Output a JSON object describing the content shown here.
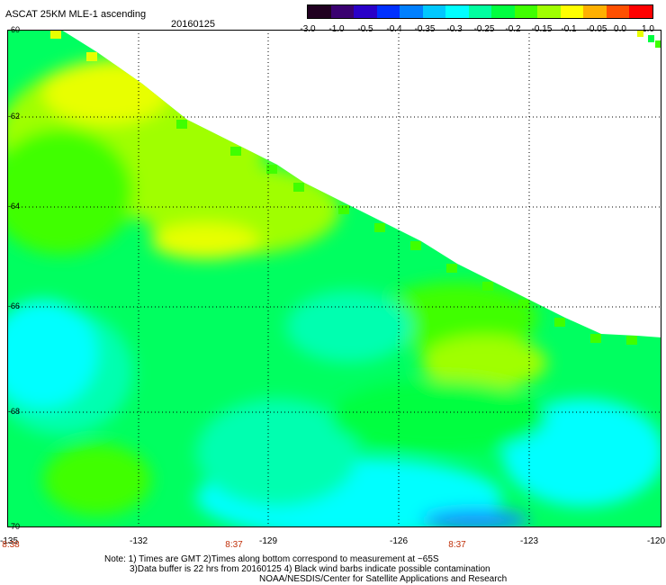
{
  "header": {
    "title": "ASCAT 25KM MLE-1 ascending",
    "date": "20160125"
  },
  "colorbar": {
    "tick_labels": [
      "-3.0",
      "-1.0",
      "-0.5",
      "-0.4",
      "-0.35",
      "-0.3",
      "-0.25",
      "-0.2",
      "-0.15",
      "-0.1",
      "-0.05",
      "0.0",
      "1.0"
    ],
    "colors": [
      "#200020",
      "#3a0070",
      "#2a00c8",
      "#0030ff",
      "#0080ff",
      "#00c8ff",
      "#00ffff",
      "#00ffa0",
      "#00ff40",
      "#40ff00",
      "#a0ff00",
      "#ffff00",
      "#ffb000",
      "#ff5000",
      "#ff0000"
    ]
  },
  "map": {
    "lat_labels": [
      "-60",
      "-62",
      "-64",
      "-66",
      "-68",
      "-70"
    ],
    "lon_labels": [
      "-135",
      "-132",
      "-129",
      "-126",
      "-123",
      "-120"
    ],
    "time_labels": [
      "8:38",
      "8:37",
      "8:37"
    ],
    "field_colors": {
      "cyan": "#00ffff",
      "aqua_green": "#00ffb0",
      "green": "#00ff40",
      "bright_green": "#40ff00",
      "yellow_green": "#a0ff00",
      "yellow": "#e8ff00",
      "orange": "#ffc000",
      "blue": "#1890ff"
    }
  },
  "notes": {
    "line1": "Note: 1) Times are GMT 2)Times along bottom correspond to measurement at ~65S",
    "line2": "3)Data buffer is 22 hrs from 20160125 4) Black wind barbs indicate possible contamination",
    "line3": "NOAA/NESDIS/Center for Satellite Applications and Research"
  }
}
